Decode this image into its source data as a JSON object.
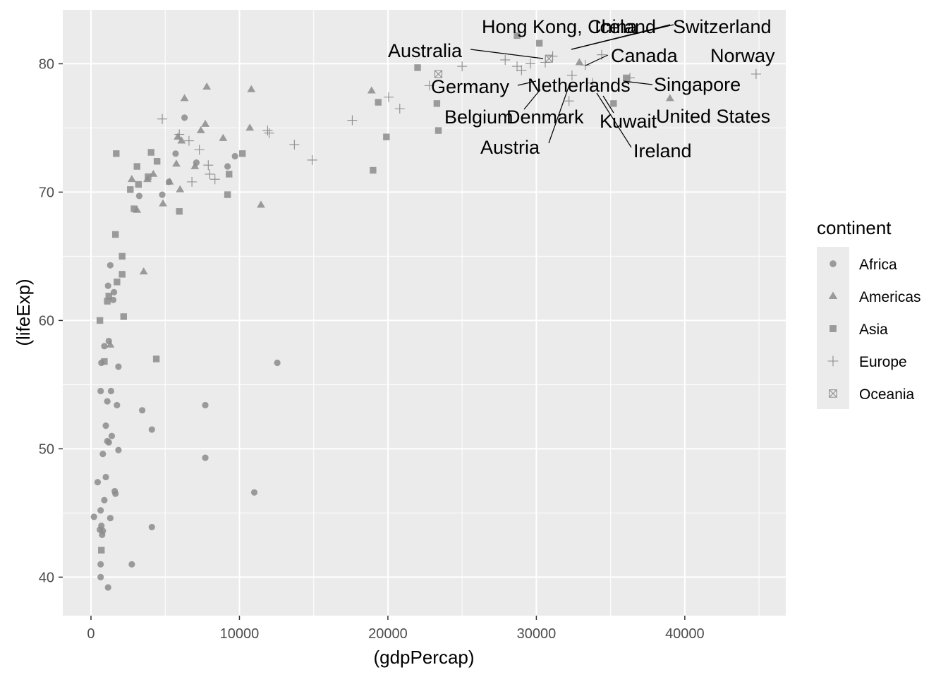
{
  "chart_data": {
    "type": "scatter",
    "xlabel": "(gdpPercap)",
    "ylabel": "(lifeExp)",
    "xlim": [
      -1900,
      46800
    ],
    "ylim": [
      37,
      84.2
    ],
    "x_ticks": [
      0,
      10000,
      20000,
      30000,
      40000
    ],
    "x_tick_labels": [
      "0",
      "10000",
      "20000",
      "30000",
      "40000"
    ],
    "y_ticks": [
      40,
      50,
      60,
      70,
      80
    ],
    "y_tick_labels": [
      "40",
      "50",
      "60",
      "70",
      "80"
    ],
    "grid": true,
    "colors": {
      "panel": "#ebebeb",
      "grid": "#ffffff",
      "points": "#8c8c8c",
      "text": "#000000",
      "ticks": "#4d4d4d"
    },
    "legend": {
      "title": "continent",
      "position": "right",
      "entries": [
        {
          "name": "Africa",
          "shape": "circle"
        },
        {
          "name": "Americas",
          "shape": "triangle"
        },
        {
          "name": "Asia",
          "shape": "square"
        },
        {
          "name": "Europe",
          "shape": "plus"
        },
        {
          "name": "Oceania",
          "shape": "boxx"
        }
      ]
    },
    "series": [
      {
        "name": "Africa",
        "points": [
          [
            200,
            44.7
          ],
          [
            450,
            47.4
          ],
          [
            650,
            54.5
          ],
          [
            700,
            56.7
          ],
          [
            900,
            58.0
          ],
          [
            600,
            43.7
          ],
          [
            650,
            41.0
          ],
          [
            650,
            40.0
          ],
          [
            650,
            45.2
          ],
          [
            700,
            44.0
          ],
          [
            750,
            43.3
          ],
          [
            800,
            43.6
          ],
          [
            800,
            49.6
          ],
          [
            900,
            46.0
          ],
          [
            1000,
            47.8
          ],
          [
            1000,
            51.8
          ],
          [
            1100,
            53.7
          ],
          [
            1100,
            50.6
          ],
          [
            1150,
            39.2
          ],
          [
            1200,
            50.5
          ],
          [
            1200,
            58.4
          ],
          [
            1150,
            62.7
          ],
          [
            1300,
            64.3
          ],
          [
            1350,
            54.5
          ],
          [
            1400,
            51.0
          ],
          [
            1500,
            61.6
          ],
          [
            1550,
            62.2
          ],
          [
            1600,
            46.7
          ],
          [
            1650,
            46.5
          ],
          [
            1750,
            53.4
          ],
          [
            1850,
            56.4
          ],
          [
            1850,
            49.9
          ],
          [
            2750,
            41.0
          ],
          [
            3250,
            69.7
          ],
          [
            3450,
            53.0
          ],
          [
            4100,
            51.5
          ],
          [
            4100,
            43.9
          ],
          [
            4800,
            69.8
          ],
          [
            5250,
            70.8
          ],
          [
            5700,
            73.0
          ],
          [
            6300,
            75.8
          ],
          [
            7100,
            72.3
          ],
          [
            7700,
            53.4
          ],
          [
            7700,
            49.3
          ],
          [
            9200,
            72.0
          ],
          [
            9700,
            72.8
          ],
          [
            11000,
            46.6
          ],
          [
            12550,
            56.7
          ],
          [
            1300,
            44.6
          ]
        ]
      },
      {
        "name": "Americas",
        "points": [
          [
            1300,
            58.1
          ],
          [
            2750,
            71.0
          ],
          [
            3100,
            68.6
          ],
          [
            3550,
            63.8
          ],
          [
            3800,
            71.0
          ],
          [
            4200,
            71.4
          ],
          [
            4850,
            69.1
          ],
          [
            5300,
            70.8
          ],
          [
            5750,
            72.2
          ],
          [
            5850,
            74.3
          ],
          [
            6000,
            70.2
          ],
          [
            6100,
            74.0
          ],
          [
            6300,
            77.3
          ],
          [
            7000,
            72.0
          ],
          [
            7400,
            74.8
          ],
          [
            7700,
            75.3
          ],
          [
            7800,
            78.2
          ],
          [
            8900,
            74.2
          ],
          [
            10700,
            75.0
          ],
          [
            10800,
            78.0
          ],
          [
            11450,
            69.0
          ],
          [
            18900,
            77.9
          ],
          [
            32900,
            80.1
          ],
          [
            39000,
            77.3
          ]
        ]
      },
      {
        "name": "Asia",
        "points": [
          [
            600,
            60.0
          ],
          [
            700,
            42.1
          ],
          [
            900,
            56.8
          ],
          [
            1100,
            61.5
          ],
          [
            1200,
            61.9
          ],
          [
            1650,
            66.7
          ],
          [
            1750,
            63.0
          ],
          [
            1700,
            73.0
          ],
          [
            2100,
            65.0
          ],
          [
            2200,
            60.3
          ],
          [
            2100,
            63.6
          ],
          [
            2650,
            70.2
          ],
          [
            2900,
            68.7
          ],
          [
            3100,
            72.0
          ],
          [
            3200,
            70.6
          ],
          [
            3850,
            71.2
          ],
          [
            4050,
            73.1
          ],
          [
            4450,
            72.4
          ],
          [
            4400,
            57.0
          ],
          [
            5950,
            68.5
          ],
          [
            9200,
            69.8
          ],
          [
            9300,
            71.4
          ],
          [
            10200,
            73.0
          ],
          [
            19000,
            71.7
          ],
          [
            19350,
            77.0
          ],
          [
            19900,
            74.3
          ],
          [
            22000,
            79.7
          ],
          [
            23300,
            76.9
          ],
          [
            23400,
            74.8
          ],
          [
            28700,
            82.2
          ],
          [
            30200,
            81.6
          ],
          [
            35200,
            76.9
          ],
          [
            36050,
            78.9
          ]
        ]
      },
      {
        "name": "Europe",
        "points": [
          [
            4800,
            75.7
          ],
          [
            5950,
            74.5
          ],
          [
            6600,
            74.0
          ],
          [
            6800,
            70.8
          ],
          [
            7300,
            73.3
          ],
          [
            7900,
            72.1
          ],
          [
            8000,
            71.4
          ],
          [
            8350,
            71.0
          ],
          [
            11900,
            74.8
          ],
          [
            12000,
            74.6
          ],
          [
            13700,
            73.7
          ],
          [
            14900,
            72.5
          ],
          [
            17600,
            75.6
          ],
          [
            20050,
            77.4
          ],
          [
            20800,
            76.5
          ],
          [
            22800,
            78.3
          ],
          [
            25000,
            79.8
          ],
          [
            27900,
            80.3
          ],
          [
            28700,
            79.8
          ],
          [
            29000,
            79.5
          ],
          [
            29600,
            80.0
          ],
          [
            30600,
            80.1
          ],
          [
            31100,
            80.6
          ],
          [
            32400,
            79.1
          ],
          [
            32200,
            77.1
          ],
          [
            33300,
            79.9
          ],
          [
            34400,
            80.7
          ],
          [
            36300,
            78.9
          ],
          [
            44800,
            79.2
          ],
          [
            33800,
            78.5
          ]
        ]
      },
      {
        "name": "Oceania",
        "points": [
          [
            23400,
            79.2
          ],
          [
            30850,
            80.4
          ]
        ]
      }
    ],
    "annotations": [
      {
        "label": "Hong Kong, China",
        "x": 30200,
        "y": 81.6
      },
      {
        "label": "Iceland",
        "x": 31100,
        "y": 80.6
      },
      {
        "label": "Switzerland",
        "x": 34400,
        "y": 80.7
      },
      {
        "label": "Australia",
        "x": 30850,
        "y": 80.4
      },
      {
        "label": "Canada",
        "x": 32900,
        "y": 80.1
      },
      {
        "label": "Norway",
        "x": 44800,
        "y": 79.2
      },
      {
        "label": "Germany",
        "x": 29600,
        "y": 79.0
      },
      {
        "label": "Netherlands",
        "x": 32400,
        "y": 79.1
      },
      {
        "label": "Singapore",
        "x": 36300,
        "y": 78.9
      },
      {
        "label": "Belgium",
        "x": 30600,
        "y": 78.5
      },
      {
        "label": "Denmark",
        "x": 32200,
        "y": 77.1
      },
      {
        "label": "United States",
        "x": 39000,
        "y": 77.3
      },
      {
        "label": "Kuwait",
        "x": 35200,
        "y": 76.9
      },
      {
        "label": "Austria",
        "x": 32500,
        "y": 78.6
      },
      {
        "label": "Ireland",
        "x": 34400,
        "y": 78.4
      }
    ]
  }
}
